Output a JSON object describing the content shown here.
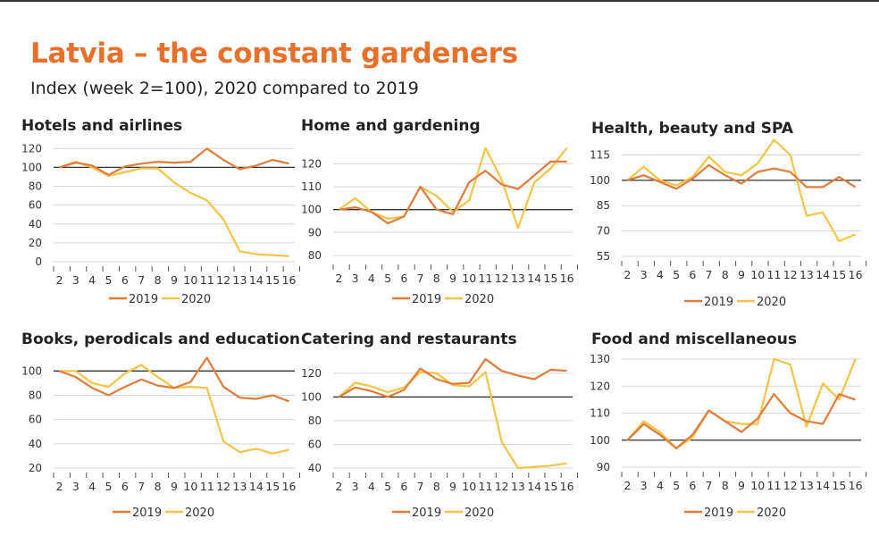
{
  "title": "Latvia – the constant gardeners",
  "subtitle": "Index (week 2=100), 2020 compared to 2019",
  "colors": {
    "s2019": "#e07b39",
    "s2020": "#f6c445",
    "title": "#e8702a",
    "baseline": "#333333",
    "grid": "#d6d6d6"
  },
  "chart_data": [
    {
      "type": "line",
      "title": "Hotels and airlines",
      "x": [
        "2",
        "3",
        "4",
        "5",
        "6",
        "7",
        "8",
        "9",
        "10",
        "11",
        "12",
        "13",
        "14",
        "15",
        "16"
      ],
      "yticks": [
        0,
        20,
        40,
        60,
        80,
        100,
        120
      ],
      "ylim": [
        0,
        125
      ],
      "baseline": 100,
      "legend": "bottom",
      "series": [
        {
          "name": "2019",
          "values": [
            100,
            105,
            102,
            92,
            101,
            104,
            106,
            105,
            106,
            120,
            108,
            98,
            102,
            108,
            104
          ]
        },
        {
          "name": "2020",
          "values": [
            100,
            106,
            100,
            91,
            95,
            99,
            99,
            84,
            73,
            65,
            45,
            11,
            8,
            7,
            6
          ]
        }
      ]
    },
    {
      "type": "line",
      "title": "Home and gardening",
      "x": [
        "2",
        "3",
        "4",
        "5",
        "6",
        "7",
        "8",
        "9",
        "10",
        "11",
        "12",
        "13",
        "14",
        "15",
        "16"
      ],
      "yticks": [
        80,
        90,
        100,
        110,
        120
      ],
      "ylim": [
        78,
        128
      ],
      "baseline": 100,
      "legend": "bottom",
      "series": [
        {
          "name": "2019",
          "values": [
            100,
            101,
            99,
            94,
            97,
            110,
            100,
            98,
            112,
            117,
            111,
            109,
            115,
            121,
            121
          ]
        },
        {
          "name": "2020",
          "values": [
            100,
            105,
            99,
            96,
            97,
            110,
            106,
            99,
            104,
            127,
            113,
            92,
            112,
            118,
            127
          ]
        }
      ]
    },
    {
      "type": "line",
      "title": "Health, beauty and SPA",
      "x": [
        "2",
        "3",
        "4",
        "5",
        "6",
        "7",
        "8",
        "9",
        "10",
        "11",
        "12",
        "13",
        "14",
        "15",
        "16"
      ],
      "yticks": [
        55,
        70,
        85,
        100,
        115
      ],
      "ylim": [
        55,
        120
      ],
      "baseline": 100,
      "legend": "bottom",
      "series": [
        {
          "name": "2019",
          "values": [
            100,
            103,
            99,
            95,
            101,
            109,
            103,
            98,
            105,
            107,
            105,
            96,
            96,
            102,
            96
          ]
        },
        {
          "name": "2020",
          "values": [
            100,
            108,
            100,
            97,
            102,
            114,
            105,
            103,
            110,
            124,
            115,
            79,
            81,
            64,
            68
          ]
        }
      ]
    },
    {
      "type": "line",
      "title": "Books, perodicals and education",
      "x": [
        "2",
        "3",
        "4",
        "5",
        "6",
        "7",
        "8",
        "9",
        "10",
        "11",
        "12",
        "13",
        "14",
        "15",
        "16"
      ],
      "yticks": [
        20,
        40,
        60,
        80,
        100
      ],
      "ylim": [
        20,
        112
      ],
      "baseline": 100,
      "legend": "bottom",
      "series": [
        {
          "name": "2019",
          "values": [
            100,
            95,
            86,
            80,
            87,
            93,
            88,
            86,
            91,
            111,
            87,
            78,
            77,
            80,
            75
          ]
        },
        {
          "name": "2020",
          "values": [
            100,
            100,
            90,
            87,
            98,
            105,
            95,
            86,
            87,
            86,
            42,
            33,
            36,
            32,
            35
          ]
        }
      ]
    },
    {
      "type": "line",
      "title": "Catering and restaurants",
      "x": [
        "2",
        "3",
        "4",
        "5",
        "6",
        "7",
        "8",
        "9",
        "10",
        "11",
        "12",
        "13",
        "14",
        "15",
        "16"
      ],
      "yticks": [
        40,
        60,
        80,
        100,
        120
      ],
      "ylim": [
        40,
        135
      ],
      "baseline": 100,
      "legend": "bottom",
      "series": [
        {
          "name": "2019",
          "values": [
            100,
            108,
            105,
            100,
            106,
            124,
            115,
            111,
            112,
            132,
            122,
            118,
            115,
            123,
            122
          ]
        },
        {
          "name": "2020",
          "values": [
            100,
            112,
            109,
            104,
            108,
            121,
            120,
            110,
            109,
            121,
            62,
            40,
            41,
            42,
            44
          ]
        }
      ]
    },
    {
      "type": "line",
      "title": "Food and miscellaneous",
      "x": [
        "2",
        "3",
        "4",
        "5",
        "6",
        "7",
        "8",
        "9",
        "10",
        "11",
        "12",
        "13",
        "14",
        "15",
        "16"
      ],
      "yticks": [
        90,
        100,
        110,
        120,
        130
      ],
      "ylim": [
        90,
        130
      ],
      "baseline": 100,
      "legend": "bottom",
      "series": [
        {
          "name": "2019",
          "values": [
            100,
            106,
            102,
            97,
            102,
            111,
            107,
            103,
            108,
            117,
            110,
            107,
            106,
            117,
            115
          ]
        },
        {
          "name": "2020",
          "values": [
            100,
            107,
            103,
            97,
            101,
            111,
            107,
            106,
            106,
            130,
            128,
            105,
            121,
            115,
            130
          ]
        }
      ]
    }
  ]
}
